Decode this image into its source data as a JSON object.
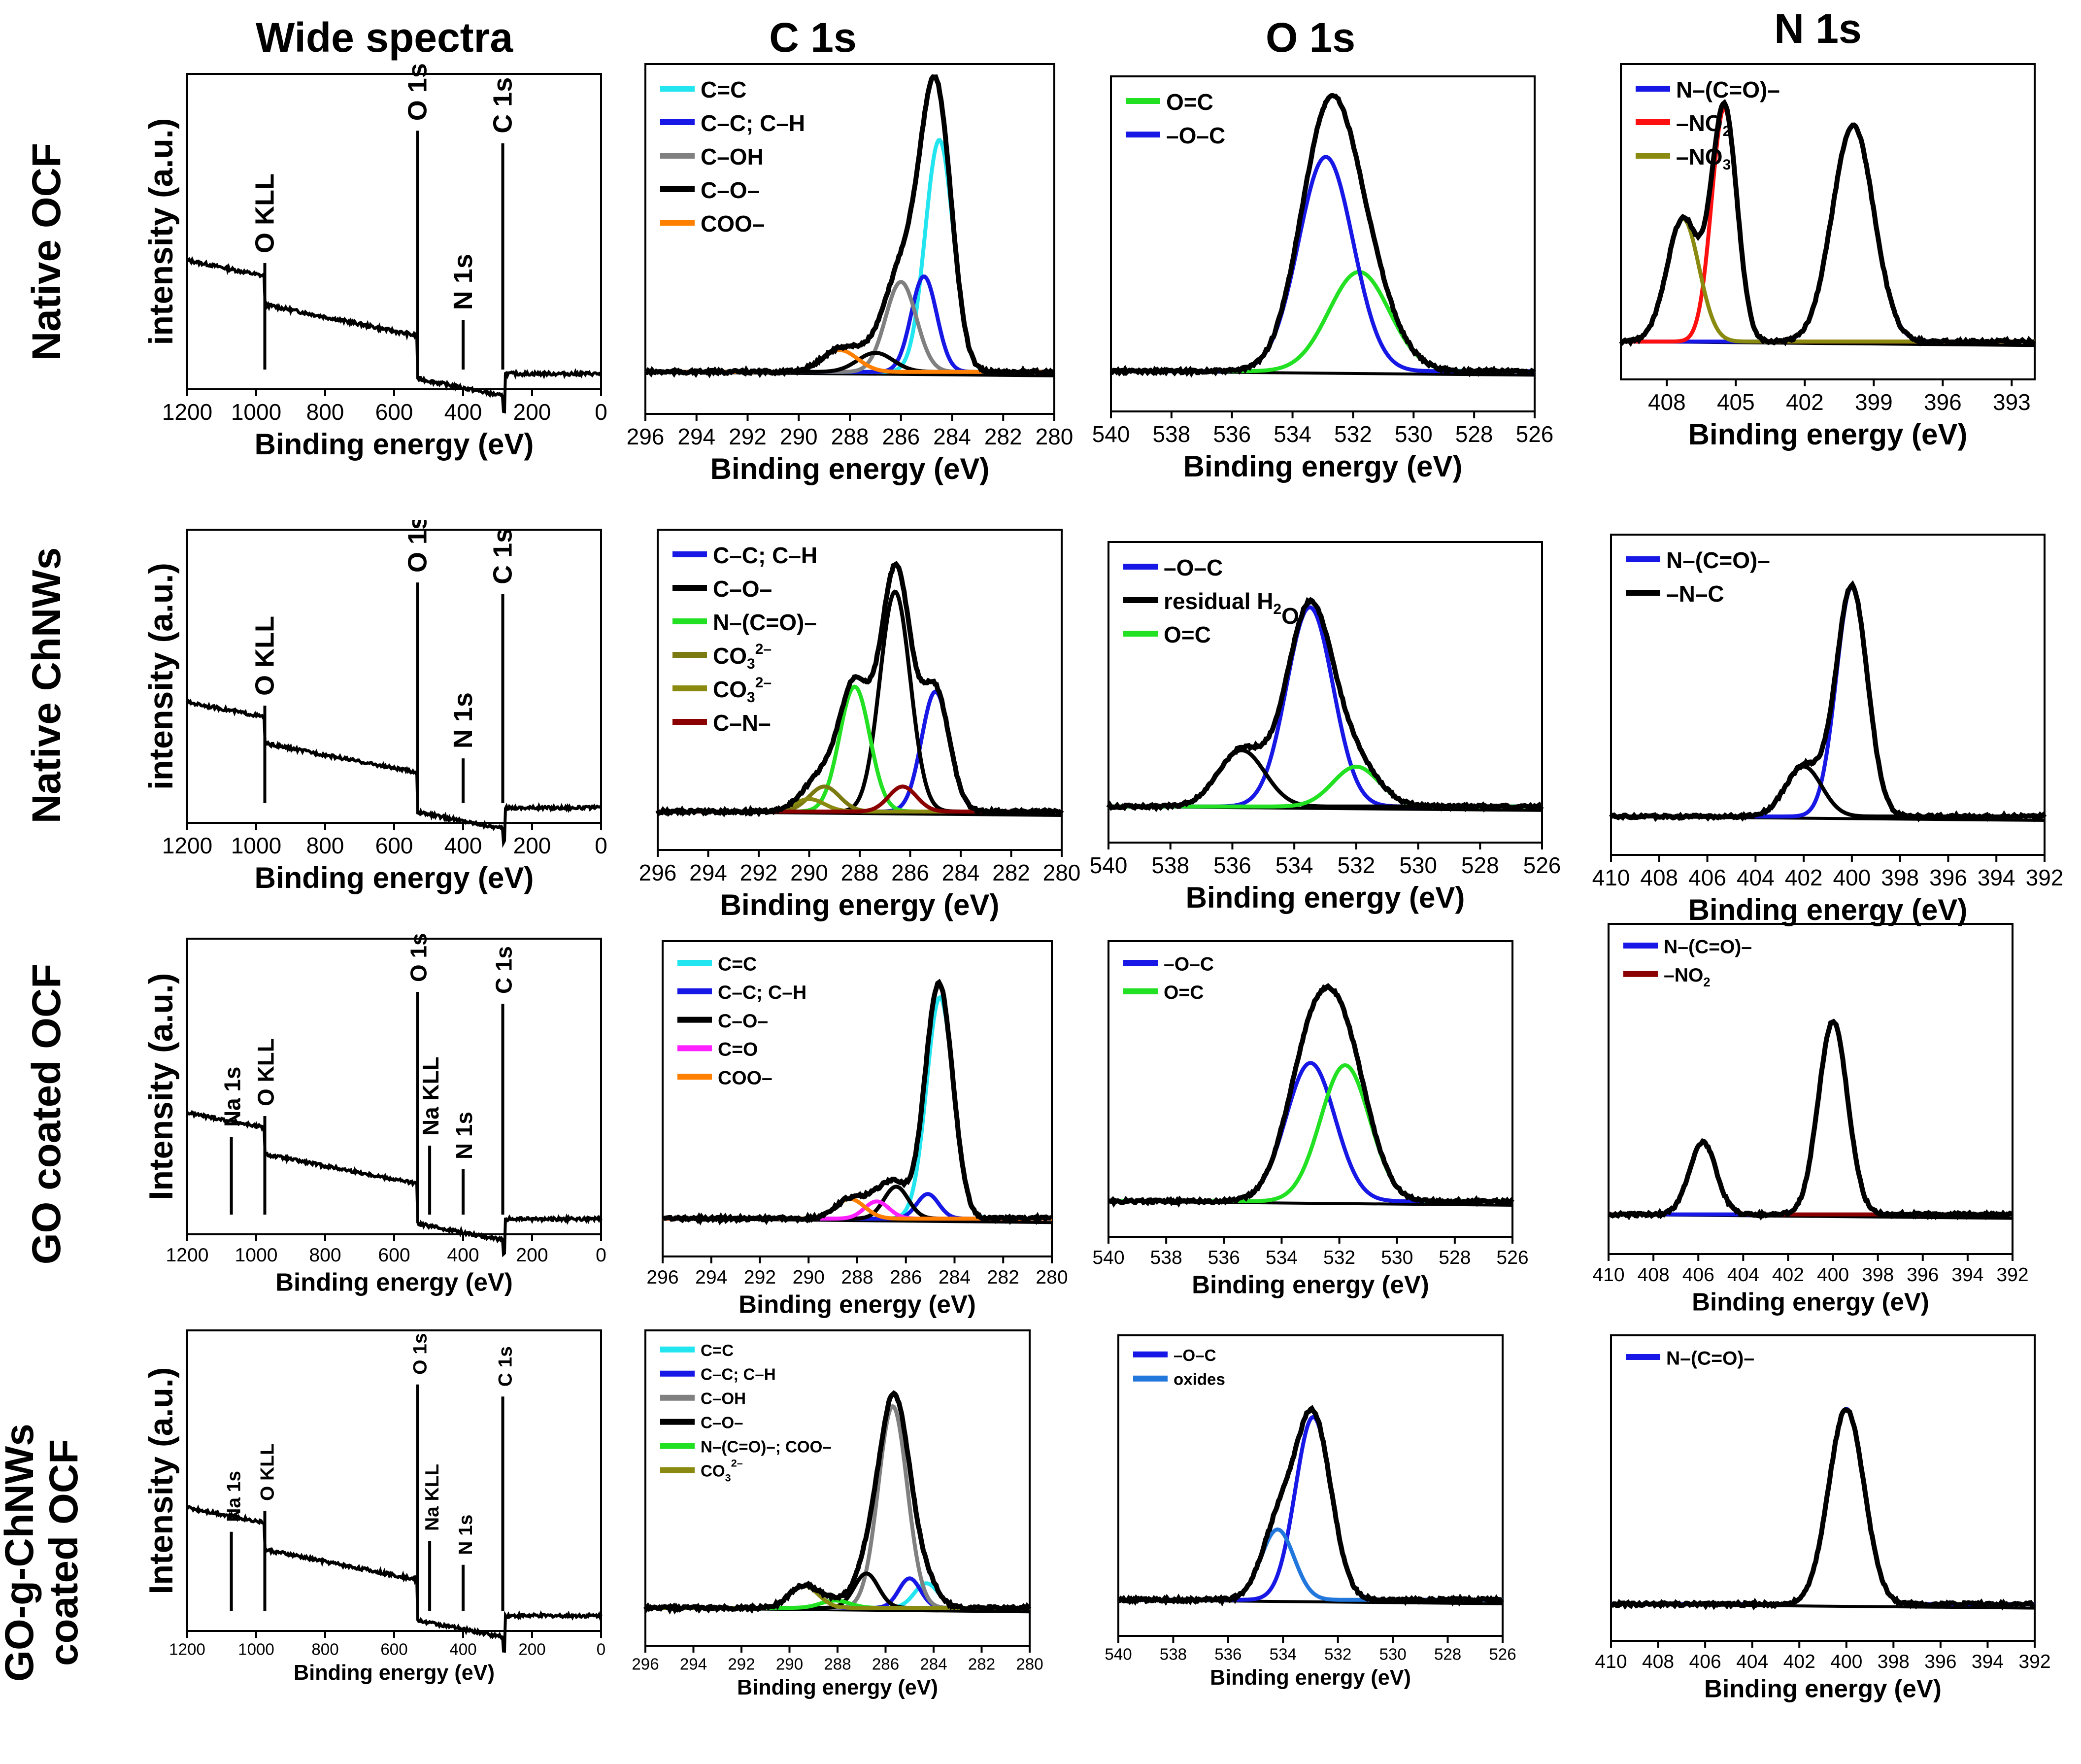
{
  "figure": {
    "column_titles": [
      "Wide spectra",
      "C 1s",
      "O 1s",
      "N 1s"
    ],
    "row_labels": [
      {
        "main": "Native OCF",
        "ylabel": "intensity (a.u.)"
      },
      {
        "main": "Native ChNWs",
        "ylabel": "intensity (a.u.)"
      },
      {
        "main": "GO coated OCF",
        "ylabel": "Intensity (a.u.)"
      },
      {
        "main": "GO-g-ChNWs",
        "main2": "coated OCF",
        "ylabel": "Intensity (a.u.)"
      }
    ]
  },
  "chart_data": [
    {
      "id": "w1",
      "type": "line",
      "xlabel": "Binding energy (eV)",
      "xlim": [
        1200,
        0
      ],
      "xticks": [
        1200,
        1000,
        800,
        600,
        400,
        200,
        0
      ],
      "peaks": [
        {
          "label": "O KLL",
          "x": 975
        },
        {
          "label": "O 1s",
          "x": 532
        },
        {
          "label": "N 1s",
          "x": 400
        },
        {
          "label": "C 1s",
          "x": 285
        }
      ]
    },
    {
      "id": "c1",
      "type": "line",
      "xlabel": "Binding energy (eV)",
      "xlim": [
        296,
        280
      ],
      "xticks": [
        296,
        294,
        292,
        290,
        288,
        286,
        284,
        282,
        280
      ],
      "series": [
        {
          "name": "C=C",
          "color": "#22e5f0",
          "center": 284.5,
          "width": 0.55,
          "amp": 0.85
        },
        {
          "name": "C–C; C–H",
          "color": "#1717e6",
          "center": 285.1,
          "width": 0.5,
          "amp": 0.35
        },
        {
          "name": "C–OH",
          "color": "#808080",
          "center": 286.0,
          "width": 0.6,
          "amp": 0.33
        },
        {
          "name": "C–O–",
          "color": "#000000",
          "center": 287.0,
          "width": 0.7,
          "amp": 0.07
        },
        {
          "name": "COO–",
          "color": "#ff8000",
          "center": 288.4,
          "width": 0.7,
          "amp": 0.08
        }
      ]
    },
    {
      "id": "o1",
      "type": "line",
      "xlabel": "Binding energy (eV)",
      "xlim": [
        540,
        526
      ],
      "xticks": [
        540,
        538,
        536,
        534,
        532,
        530,
        528,
        526
      ],
      "series": [
        {
          "name": "O=C",
          "color": "#22e022",
          "center": 531.8,
          "width": 1.0,
          "amp": 0.38
        },
        {
          "name": "–O–C",
          "color": "#1717e6",
          "center": 532.9,
          "width": 0.9,
          "amp": 0.82
        }
      ]
    },
    {
      "id": "n1",
      "type": "line",
      "xlabel": "Binding energy (eV)",
      "xlim": [
        410,
        392
      ],
      "xticks": [
        408,
        405,
        402,
        399,
        396,
        393
      ],
      "series": [
        {
          "name": "N–(C=O)–",
          "color": "#1717e6",
          "center": 399.9,
          "width": 0.9,
          "amp": 0.88
        },
        {
          "name": "–NO2",
          "color": "#ff1010",
          "center": 405.5,
          "width": 0.55,
          "amp": 0.95
        },
        {
          "name": "–NO3",
          "color": "#8a8a10",
          "center": 407.3,
          "width": 0.7,
          "amp": 0.5
        }
      ],
      "legend_labels": [
        "N–(C=O)–",
        "–NO",
        "–NO"
      ],
      "legend_subs": [
        "",
        "2",
        "3"
      ]
    },
    {
      "id": "w2",
      "type": "line",
      "xlabel": "Binding energy (eV)",
      "xlim": [
        1200,
        0
      ],
      "xticks": [
        1200,
        1000,
        800,
        600,
        400,
        200,
        0
      ],
      "peaks": [
        {
          "label": "O KLL",
          "x": 975
        },
        {
          "label": "O 1s",
          "x": 532
        },
        {
          "label": "N 1s",
          "x": 400
        },
        {
          "label": "C 1s",
          "x": 285
        }
      ]
    },
    {
      "id": "c2",
      "type": "line",
      "xlabel": "Binding energy (eV)",
      "xlim": [
        296,
        280
      ],
      "xticks": [
        296,
        294,
        292,
        290,
        288,
        286,
        284,
        282,
        280
      ],
      "series": [
        {
          "name": "C–C; C–H",
          "color": "#1717e6",
          "center": 285.0,
          "width": 0.55,
          "amp": 0.48
        },
        {
          "name": "C–O–",
          "color": "#000000",
          "center": 286.6,
          "width": 0.6,
          "amp": 0.88
        },
        {
          "name": "N–(C=O)–",
          "color": "#22e022",
          "center": 288.2,
          "width": 0.6,
          "amp": 0.5
        },
        {
          "name": "CO3 2–",
          "color": "#7a7a10",
          "center": 289.4,
          "width": 0.6,
          "amp": 0.1
        },
        {
          "name": "CO3 2–",
          "color": "#8a8a10",
          "center": 290.0,
          "width": 0.6,
          "amp": 0.05
        },
        {
          "name": "C–N–",
          "color": "#8b0000",
          "center": 286.3,
          "width": 0.55,
          "amp": 0.1
        }
      ],
      "legend_labels": [
        "C–C; C–H",
        "C–O–",
        "N–(C=O)–",
        "CO",
        "CO",
        "C–N–"
      ],
      "legend_subs": [
        "",
        "",
        "",
        "3",
        "3",
        ""
      ],
      "legend_sups": [
        "",
        "",
        "",
        "2–",
        "2–",
        ""
      ]
    },
    {
      "id": "o2",
      "type": "line",
      "xlabel": "Binding energy (eV)",
      "xlim": [
        540,
        526
      ],
      "xticks": [
        540,
        538,
        536,
        534,
        532,
        530,
        528,
        526
      ],
      "series": [
        {
          "name": "–O–C",
          "color": "#1717e6",
          "center": 533.5,
          "width": 0.75,
          "amp": 0.85
        },
        {
          "name": "residual H2O",
          "color": "#000000",
          "center": 535.7,
          "width": 0.75,
          "amp": 0.24
        },
        {
          "name": "O=C",
          "color": "#22e022",
          "center": 532.0,
          "width": 0.75,
          "amp": 0.17
        }
      ],
      "legend_labels": [
        "–O–C",
        "residual H",
        "O=C"
      ],
      "legend_subs": [
        "",
        "2",
        ""
      ],
      "legend_tail": [
        "",
        "O",
        ""
      ]
    },
    {
      "id": "n2",
      "type": "line",
      "xlabel": "Binding energy (eV)",
      "xlim": [
        410,
        392
      ],
      "xticks": [
        410,
        408,
        406,
        404,
        402,
        400,
        398,
        396,
        394,
        392
      ],
      "series": [
        {
          "name": "N–(C=O)–",
          "color": "#1717e6",
          "center": 400.0,
          "width": 0.65,
          "amp": 0.92
        },
        {
          "name": "–N–C",
          "color": "#000000",
          "center": 402.0,
          "width": 0.75,
          "amp": 0.2
        }
      ]
    },
    {
      "id": "w3",
      "type": "line",
      "xlabel": "Binding energy (eV)",
      "xlim": [
        1200,
        0
      ],
      "xticks": [
        1200,
        1000,
        800,
        600,
        400,
        200,
        0
      ],
      "peaks": [
        {
          "label": "Na 1s",
          "x": 1072
        },
        {
          "label": "O KLL",
          "x": 975
        },
        {
          "label": "O 1s",
          "x": 532
        },
        {
          "label": "Na KLL",
          "x": 497
        },
        {
          "label": "N 1s",
          "x": 400
        },
        {
          "label": "C 1s",
          "x": 285
        }
      ]
    },
    {
      "id": "c3",
      "type": "line",
      "xlabel": "Binding energy (eV)",
      "xlim": [
        296,
        280
      ],
      "xticks": [
        296,
        294,
        292,
        290,
        288,
        286,
        284,
        282,
        280
      ],
      "series": [
        {
          "name": "C=C",
          "color": "#22e5f0",
          "center": 284.6,
          "width": 0.55,
          "amp": 0.9
        },
        {
          "name": "C–C; C–H",
          "color": "#1717e6",
          "center": 285.1,
          "width": 0.45,
          "amp": 0.1
        },
        {
          "name": "C–O–",
          "color": "#000000",
          "center": 286.4,
          "width": 0.5,
          "amp": 0.13
        },
        {
          "name": "C=O",
          "color": "#ff20ff",
          "center": 287.2,
          "width": 0.5,
          "amp": 0.07
        },
        {
          "name": "COO–",
          "color": "#ff8000",
          "center": 288.3,
          "width": 0.6,
          "amp": 0.08
        }
      ]
    },
    {
      "id": "o3",
      "type": "line",
      "xlabel": "Binding energy (eV)",
      "xlim": [
        540,
        526
      ],
      "xticks": [
        540,
        538,
        536,
        534,
        532,
        530,
        528,
        526
      ],
      "series": [
        {
          "name": "–O–C",
          "color": "#1717e6",
          "center": 533.0,
          "width": 0.85,
          "amp": 0.6
        },
        {
          "name": "O=C",
          "color": "#22e022",
          "center": 531.8,
          "width": 0.85,
          "amp": 0.59
        }
      ]
    },
    {
      "id": "n3",
      "type": "line",
      "xlabel": "Binding energy (eV)",
      "xlim": [
        410,
        392
      ],
      "xticks": [
        410,
        408,
        406,
        404,
        402,
        400,
        398,
        396,
        394,
        392
      ],
      "series": [
        {
          "name": "N–(C=O)–",
          "color": "#1717e6",
          "center": 400.0,
          "width": 0.65,
          "amp": 0.75
        },
        {
          "name": "–NO2",
          "color": "#8b0000",
          "center": 405.8,
          "width": 0.6,
          "amp": 0.28
        }
      ],
      "legend_labels": [
        "N–(C=O)–",
        "–NO"
      ],
      "legend_subs": [
        "",
        "2"
      ]
    },
    {
      "id": "w4",
      "type": "line",
      "xlabel": "Binding energy (eV)",
      "xlim": [
        1200,
        0
      ],
      "xticks": [
        1200,
        1000,
        800,
        600,
        400,
        200,
        0
      ],
      "peaks": [
        {
          "label": "Na 1s",
          "x": 1072
        },
        {
          "label": "O KLL",
          "x": 975
        },
        {
          "label": "O 1s",
          "x": 532
        },
        {
          "label": "Na KLL",
          "x": 497
        },
        {
          "label": "N 1s",
          "x": 400
        },
        {
          "label": "C 1s",
          "x": 285
        }
      ]
    },
    {
      "id": "c4",
      "type": "line",
      "xlabel": "Binding energy (eV)",
      "xlim": [
        296,
        280
      ],
      "xticks": [
        296,
        294,
        292,
        290,
        288,
        286,
        284,
        282,
        280
      ],
      "series": [
        {
          "name": "C=C",
          "color": "#22e5f0",
          "center": 284.3,
          "width": 0.5,
          "amp": 0.1
        },
        {
          "name": "C–C; C–H",
          "color": "#1717e6",
          "center": 285.0,
          "width": 0.45,
          "amp": 0.12
        },
        {
          "name": "C–OH",
          "color": "#808080",
          "center": 285.7,
          "width": 0.6,
          "amp": 0.82
        },
        {
          "name": "C–O–",
          "color": "#000000",
          "center": 286.8,
          "width": 0.5,
          "amp": 0.14
        },
        {
          "name": "N–(C=O)–; COO–",
          "color": "#22e022",
          "center": 288.1,
          "width": 0.6,
          "amp": 0.03
        },
        {
          "name": "CO3 2–",
          "color": "#8a8a10",
          "center": 289.4,
          "width": 0.6,
          "amp": 0.09
        }
      ],
      "legend_labels": [
        "C=C",
        "C–C; C–H",
        "C–OH",
        "C–O–",
        "N–(C=O)–; COO–",
        "CO"
      ],
      "legend_subs": [
        "",
        "",
        "",
        "",
        "",
        "3"
      ],
      "legend_sups": [
        "",
        "",
        "",
        "",
        "",
        "2–"
      ]
    },
    {
      "id": "o4",
      "type": "line",
      "xlabel": "Binding energy (eV)",
      "xlim": [
        540,
        526
      ],
      "xticks": [
        540,
        538,
        536,
        534,
        532,
        530,
        528,
        526
      ],
      "series": [
        {
          "name": "–O–C",
          "color": "#1717e6",
          "center": 532.9,
          "width": 0.65,
          "amp": 0.78
        },
        {
          "name": "oxides",
          "color": "#2277dd",
          "center": 534.2,
          "width": 0.6,
          "amp": 0.3
        }
      ]
    },
    {
      "id": "n4",
      "type": "line",
      "xlabel": "Binding energy (eV)",
      "xlim": [
        410,
        392
      ],
      "xticks": [
        410,
        408,
        406,
        404,
        402,
        400,
        398,
        396,
        394,
        392
      ],
      "series": [
        {
          "name": "N–(C=O)–",
          "color": "#1717e6",
          "center": 400.0,
          "width": 0.75,
          "amp": 0.82
        }
      ]
    }
  ]
}
